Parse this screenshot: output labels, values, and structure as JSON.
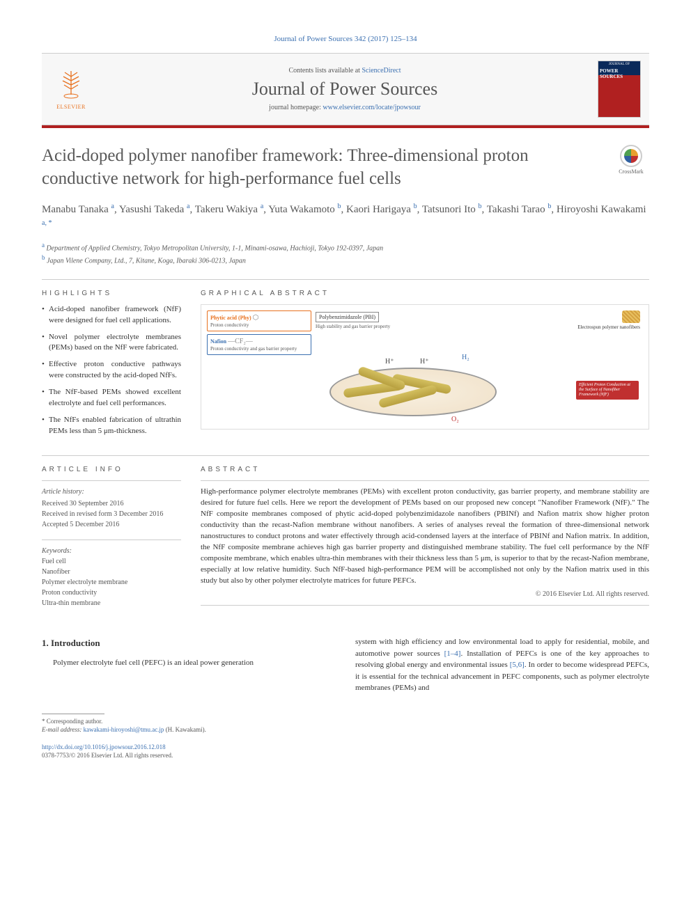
{
  "citation": "Journal of Power Sources 342 (2017) 125–134",
  "masthead": {
    "contents_prefix": "Contents lists available at ",
    "contents_link": "ScienceDirect",
    "journal_title": "Journal of Power Sources",
    "homepage_prefix": "journal homepage: ",
    "homepage_url": "www.elsevier.com/locate/jpowsour",
    "publisher": "ELSEVIER",
    "cover_journal_line": "JOURNAL OF",
    "cover_title": "POWER SOURCES"
  },
  "crossmark_label": "CrossMark",
  "article_title": "Acid-doped polymer nanofiber framework: Three-dimensional proton conductive network for high-performance fuel cells",
  "authors_html": "Manabu Tanaka <sup>a</sup>, Yasushi Takeda <sup>a</sup>, Takeru Wakiya <sup>a</sup>, Yuta Wakamoto <sup>b</sup>, Kaori Harigaya <sup>b</sup>, Tatsunori Ito <sup>b</sup>, Takashi Tarao <sup>b</sup>, Hiroyoshi Kawakami <sup>a, *</sup>",
  "affiliations": [
    {
      "sup": "a",
      "text": "Department of Applied Chemistry, Tokyo Metropolitan University, 1-1, Minami-osawa, Hachioji, Tokyo 192-0397, Japan"
    },
    {
      "sup": "b",
      "text": "Japan Vilene Company, Ltd., 7, Kitane, Koga, Ibaraki 306-0213, Japan"
    }
  ],
  "labels": {
    "highlights": "HIGHLIGHTS",
    "graphical_abstract": "GRAPHICAL ABSTRACT",
    "article_info": "ARTICLE INFO",
    "abstract": "ABSTRACT"
  },
  "highlights": [
    "Acid-doped nanofiber framework (NfF) were designed for fuel cell applications.",
    "Novel polymer electrolyte membranes (PEMs) based on the NfF were fabricated.",
    "Effective proton conductive pathways were constructed by the acid-doped NfFs.",
    "The NfF-based PEMs showed excellent electrolyte and fuel cell performances.",
    "The NfFs enabled fabrication of ultrathin PEMs less than 5 μm-thickness."
  ],
  "graphical_abstract": {
    "phytic_label": "Phytic acid (Phy)",
    "phytic_sub": "Proton conductivity",
    "nafion_label": "Nafion",
    "nafion_sub": "Proton conductivity and gas barrier property",
    "pbi_label": "Polybenzimidazole (PBI)",
    "pbi_sub": "High stability and gas barrier property",
    "electrospun_label": "Electrospun polymer nanofibers",
    "h_plus": "H⁺",
    "h2": "H₂",
    "o2": "O₂",
    "callout": "Efficient Proton Conduction at the Surface of Nanofiber Framework (NfF)",
    "colors": {
      "orange": "#e8711f",
      "blue": "#3a6fb0",
      "red": "#c03030",
      "fiber": "#d4c060",
      "ellipse_border": "#999999"
    }
  },
  "article_info": {
    "history_label": "Article history:",
    "received": "Received 30 September 2016",
    "revised": "Received in revised form 3 December 2016",
    "accepted": "Accepted 5 December 2016"
  },
  "keywords": {
    "label": "Keywords:",
    "items": [
      "Fuel cell",
      "Nanofiber",
      "Polymer electrolyte membrane",
      "Proton conductivity",
      "Ultra-thin membrane"
    ]
  },
  "abstract_text": "High-performance polymer electrolyte membranes (PEMs) with excellent proton conductivity, gas barrier property, and membrane stability are desired for future fuel cells. Here we report the development of PEMs based on our proposed new concept \"Nanofiber Framework (NfF).\" The NfF composite membranes composed of phytic acid-doped polybenzimidazole nanofibers (PBINf) and Nafion matrix show higher proton conductivity than the recast-Nafion membrane without nanofibers. A series of analyses reveal the formation of three-dimensional network nanostructures to conduct protons and water effectively through acid-condensed layers at the interface of PBINf and Nafion matrix. In addition, the NfF composite membrane achieves high gas barrier property and distinguished membrane stability. The fuel cell performance by the NfF composite membrane, which enables ultra-thin membranes with their thickness less than 5 μm, is superior to that by the recast-Nafion membrane, especially at low relative humidity. Such NfF-based high-performance PEM will be accomplished not only by the Nafion matrix used in this study but also by other polymer electrolyte matrices for future PEFCs.",
  "copyright": "© 2016 Elsevier Ltd. All rights reserved.",
  "body": {
    "section_number": "1.",
    "section_title": "Introduction",
    "col1": "Polymer electrolyte fuel cell (PEFC) is an ideal power generation",
    "col2_part1": "system with high efficiency and low environmental load to apply for residential, mobile, and automotive power sources ",
    "col2_ref1": "[1–4]",
    "col2_part2": ". Installation of PEFCs is one of the key approaches to resolving global energy and environmental issues ",
    "col2_ref2": "[5,6]",
    "col2_part3": ". In order to become widespread PEFCs, it is essential for the technical advancement in PEFC components, such as polymer electrolyte membranes (PEMs) and"
  },
  "footer": {
    "corresponding": "* Corresponding author.",
    "email_label": "E-mail address: ",
    "email": "kawakami-hiroyoshi@tmu.ac.jp",
    "email_suffix": " (H. Kawakami).",
    "doi": "http://dx.doi.org/10.1016/j.jpowsour.2016.12.018",
    "issn_line": "0378-7753/© 2016 Elsevier Ltd. All rights reserved."
  }
}
